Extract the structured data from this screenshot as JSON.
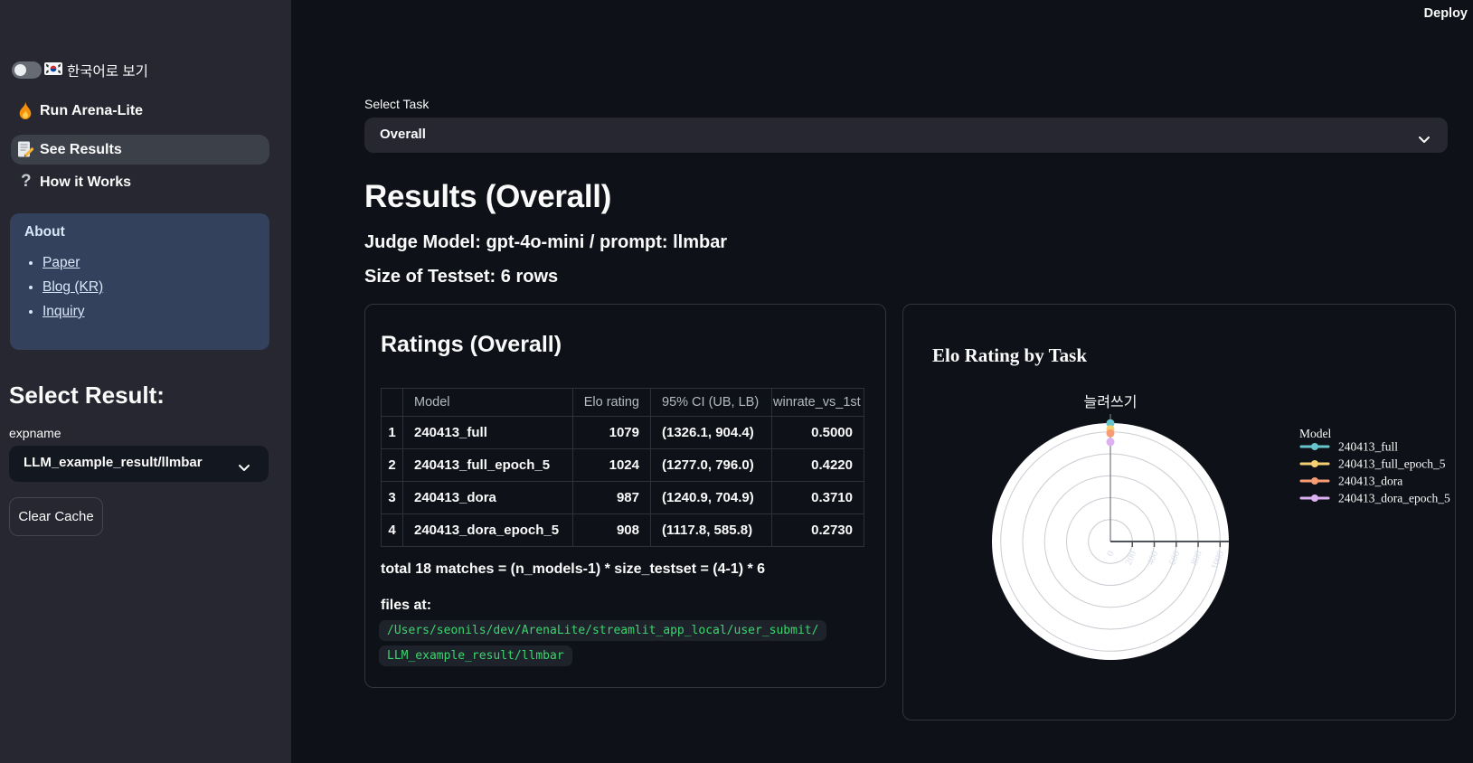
{
  "app": {
    "deploy_label": "Deploy"
  },
  "sidebar": {
    "language_toggle_label": "한국어로 보기",
    "nav_items": [
      {
        "label": "Run Arena-Lite"
      },
      {
        "label": "See Results"
      },
      {
        "label": "How it Works"
      }
    ],
    "about": {
      "title": "About",
      "links": [
        {
          "label": "Paper"
        },
        {
          "label": "Blog (KR)"
        },
        {
          "label": "Inquiry"
        }
      ]
    },
    "select_result_heading": "Select Result:",
    "expname_label": "expname",
    "expname_value": "LLM_example_result/llmbar",
    "clear_cache_label": "Clear Cache"
  },
  "main": {
    "select_task_label": "Select Task",
    "select_task_value": "Overall",
    "page_title": "Results (Overall)",
    "judge_line": "Judge Model: gpt-4o-mini / prompt: llmbar",
    "testset_line": "Size of Testset: 6 rows",
    "ratings": {
      "card_title": "Ratings (Overall)",
      "columns": [
        "",
        "Model",
        "Elo rating",
        "95% CI (UB, LB)",
        "winrate_vs_1st"
      ],
      "rows": [
        {
          "rank": "1",
          "model": "240413_full",
          "elo": "1079",
          "ci": "(1326.1, 904.4)",
          "winrate": "0.5000"
        },
        {
          "rank": "2",
          "model": "240413_full_epoch_5",
          "elo": "1024",
          "ci": "(1277.0, 796.0)",
          "winrate": "0.4220"
        },
        {
          "rank": "3",
          "model": "240413_dora",
          "elo": "987",
          "ci": "(1240.9, 704.9)",
          "winrate": "0.3710"
        },
        {
          "rank": "4",
          "model": "240413_dora_epoch_5",
          "elo": "908",
          "ci": "(1117.8, 585.8)",
          "winrate": "0.2730"
        }
      ],
      "total_line": "total 18 matches = (n_models-1) * size_testset = (4-1) * 6",
      "files_label": "files at:",
      "path_lines": [
        "/Users/seonils/dev/ArenaLite/streamlit_app_local/user_submit/",
        "LLM_example_result/llmbar"
      ]
    }
  },
  "chart_data": {
    "type": "scatter",
    "subtype": "polar",
    "title": "Elo Rating by Task",
    "categories": [
      "늘려쓰기"
    ],
    "series": [
      {
        "name": "240413_full",
        "values": [
          1079
        ],
        "color": "#66c5cc"
      },
      {
        "name": "240413_full_epoch_5",
        "values": [
          1024
        ],
        "color": "#f6cf71"
      },
      {
        "name": "240413_dora",
        "values": [
          987
        ],
        "color": "#f89c74"
      },
      {
        "name": "240413_dora_epoch_5",
        "values": [
          908
        ],
        "color": "#dcb0f2"
      }
    ],
    "radial_axis": {
      "ticks": [
        0,
        200,
        400,
        600,
        800,
        1000
      ],
      "range": [
        0,
        1080
      ]
    },
    "legend_title": "Model",
    "legend_position": "right",
    "grid": true,
    "plot_bg": "#ffffff"
  },
  "colors": {
    "main_bg": "#0e1117",
    "sidebar_bg": "#262730",
    "about_bg": "#33415c",
    "code_green": "#3dd56d"
  }
}
